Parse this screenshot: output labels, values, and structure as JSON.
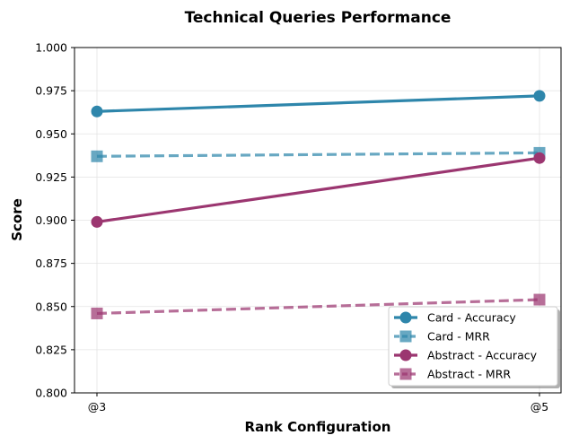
{
  "chart_data": {
    "type": "line",
    "title": "Technical Queries Performance",
    "xlabel": "Rank Configuration",
    "ylabel": "Score",
    "categories": [
      "@3",
      "@5"
    ],
    "ylim": [
      0.8,
      1.0
    ],
    "yticks": [
      0.8,
      0.825,
      0.85,
      0.875,
      0.9,
      0.925,
      0.95,
      0.975,
      1.0
    ],
    "ytick_labels": [
      "0.800",
      "0.825",
      "0.850",
      "0.875",
      "0.900",
      "0.925",
      "0.950",
      "0.975",
      "1.000"
    ],
    "grid": true,
    "legend_position": "bottom-right",
    "series": [
      {
        "name": "Card - Accuracy",
        "values": [
          0.963,
          0.972
        ],
        "color": "#2e86ab",
        "linestyle": "solid",
        "marker": "circle"
      },
      {
        "name": "Card - MRR",
        "values": [
          0.937,
          0.939
        ],
        "color": "#2e86ab",
        "linestyle": "dashed",
        "marker": "square"
      },
      {
        "name": "Abstract - Accuracy",
        "values": [
          0.899,
          0.936
        ],
        "color": "#9b3670",
        "linestyle": "solid",
        "marker": "circle"
      },
      {
        "name": "Abstract - MRR",
        "values": [
          0.846,
          0.854
        ],
        "color": "#9b3670",
        "linestyle": "dashed",
        "marker": "square"
      }
    ]
  }
}
